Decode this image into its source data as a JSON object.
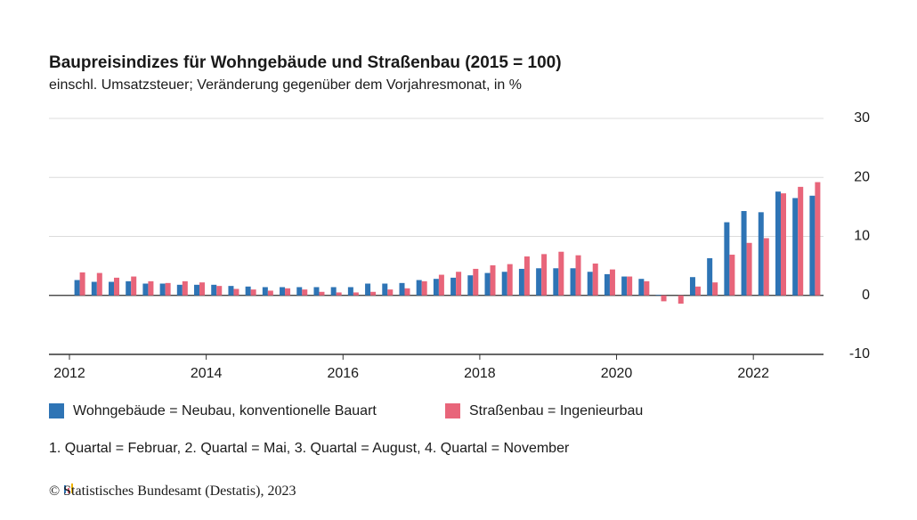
{
  "chart_data": {
    "type": "bar",
    "title": "Baupreisindizes für Wohngebäude und Straßenbau (2015 = 100)",
    "subtitle": "einschl. Umsatzsteuer; Veränderung gegenüber dem Vorjahresmonat, in %",
    "note": "1. Quartal = Februar, 2. Quartal = Mai, 3. Quartal = August, 4. Quartal = November",
    "source": "© Statistisches Bundesamt (Destatis), 2023",
    "categories": [
      "2012",
      null,
      null,
      null,
      null,
      null,
      null,
      null,
      "2014",
      null,
      null,
      null,
      null,
      null,
      null,
      null,
      "2016",
      null,
      null,
      null,
      null,
      null,
      null,
      null,
      "2018",
      null,
      null,
      null,
      null,
      null,
      null,
      null,
      "2020",
      null,
      null,
      null,
      null,
      null,
      null,
      null,
      "2022",
      null,
      null,
      null
    ],
    "series": [
      {
        "name": "Wohngebäude = Neubau, konventionelle Bauart",
        "color": "#2e74b5",
        "values": [
          2.6,
          2.3,
          2.3,
          2.4,
          2.0,
          2.0,
          1.8,
          1.8,
          1.8,
          1.6,
          1.5,
          1.4,
          1.4,
          1.4,
          1.4,
          1.4,
          1.4,
          2.0,
          2.0,
          2.1,
          2.6,
          2.8,
          3.0,
          3.4,
          3.8,
          4.0,
          4.5,
          4.6,
          4.6,
          4.6,
          4.0,
          3.6,
          3.2,
          2.8,
          0.1,
          0.0,
          3.1,
          6.3,
          12.4,
          14.3,
          14.1,
          17.6,
          16.5,
          16.9
        ]
      },
      {
        "name": "Straßenbau = Ingenieurbau",
        "color": "#e8657a",
        "values": [
          3.9,
          3.8,
          3.0,
          3.2,
          2.4,
          2.1,
          2.4,
          2.2,
          1.6,
          1.1,
          1.0,
          0.8,
          1.2,
          1.0,
          0.6,
          0.5,
          0.5,
          0.6,
          1.0,
          1.2,
          2.4,
          3.5,
          4.0,
          4.5,
          5.1,
          5.3,
          6.6,
          7.0,
          7.4,
          6.8,
          5.4,
          4.4,
          3.2,
          2.4,
          -1.0,
          -1.4,
          1.5,
          2.2,
          6.9,
          8.9,
          9.7,
          17.3,
          18.4,
          19.2
        ]
      }
    ],
    "ylim": [
      -10,
      30
    ],
    "yticks": [
      -10,
      0,
      10,
      20,
      30
    ],
    "grid": true
  }
}
